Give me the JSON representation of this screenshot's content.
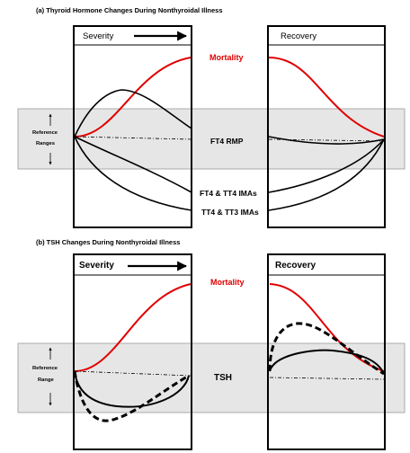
{
  "panel_a": {
    "title": "(a) Thyroid Hormone Changes During Nonthyroidal Illness",
    "severity_label": "Severity",
    "recovery_label": "Recovery",
    "mortality_label": "Mortality",
    "reference_line1": "Reference",
    "reference_line2": "Ranges",
    "ft4_rmp_label": "FT4 RMP",
    "ft4_tt4_label": "FT4 & TT4 IMAs",
    "tt4_tt3_label": "TT4 & TT3 IMAs"
  },
  "panel_b": {
    "title": "(b) TSH Changes During Nonthyroidal Illness",
    "severity_label": "Severity",
    "recovery_label": "Recovery",
    "mortality_label": "Mortality",
    "reference_line1": "Reference",
    "reference_line2": "Range",
    "tsh_label": "TSH"
  },
  "colors": {
    "mortality": "#e00000",
    "reference_band": "#e6e6e6",
    "lines": "#000000"
  }
}
